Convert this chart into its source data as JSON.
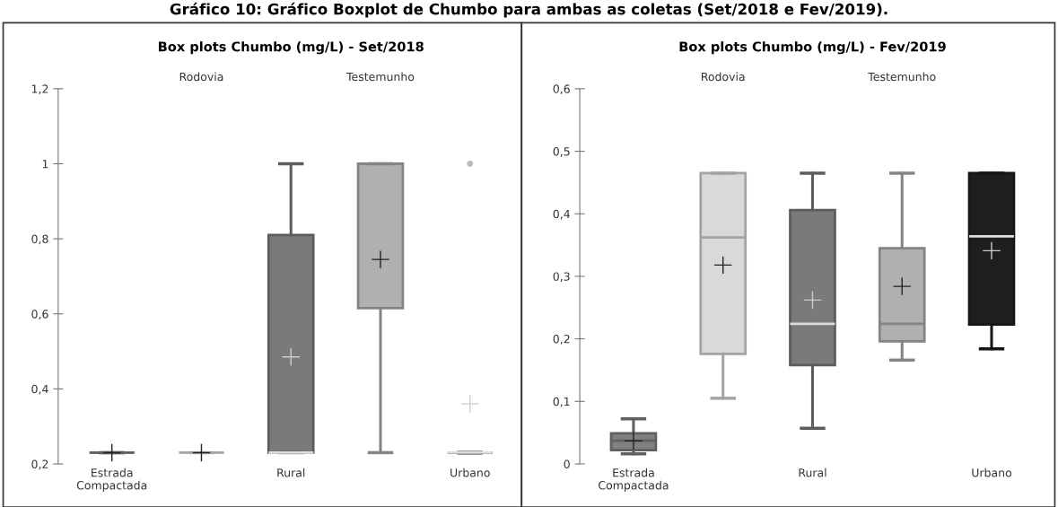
{
  "chart_data": [
    {
      "type": "box",
      "title": "Box plots Chumbo (mg/L) - Set/2018",
      "annotations": [
        "Gráfico 10: Gráfico Boxplot de Chumbo para ambas as coletas (Set/2018 e Fev/2019)."
      ],
      "categories": [
        "Estrada\nCompactada",
        "Rodovia",
        "Rural",
        "Testemunho",
        "Urbano"
      ],
      "colors": [
        "#808080",
        "#d9d9d9",
        "#7a7a7a",
        "#b0b0b0",
        "#1e1e1e"
      ],
      "boxes": [
        {
          "low": 0.23,
          "q1": 0.23,
          "median": 0.23,
          "q3": 0.23,
          "high": 0.23,
          "mean": 0.23
        },
        {
          "low": 0.23,
          "q1": 0.23,
          "median": 0.23,
          "q3": 0.23,
          "high": 0.23,
          "mean": 0.23
        },
        {
          "low": 0.23,
          "q1": 0.23,
          "median": 0.23,
          "q3": 0.81,
          "high": 1.0,
          "mean": 0.485
        },
        {
          "low": 0.23,
          "q1": 0.615,
          "median": 1.0,
          "q3": 1.0,
          "high": 1.0,
          "mean": 0.745
        },
        {
          "low": 0.23,
          "q1": 0.23,
          "median": 0.23,
          "q3": 0.23,
          "high": 0.23,
          "mean": 0.36,
          "outliers": [
            1.0
          ]
        }
      ],
      "ylim": [
        0.2,
        1.2
      ],
      "yticks": [
        {
          "value": 0.2,
          "label": "0,2"
        },
        {
          "value": 0.4,
          "label": "0,4"
        },
        {
          "value": 0.6,
          "label": "0,6"
        },
        {
          "value": 0.8,
          "label": "0,8"
        },
        {
          "value": 1,
          "label": "1"
        },
        {
          "value": 1.2,
          "label": "1,2"
        }
      ]
    },
    {
      "type": "box",
      "title": "Box plots Chumbo (mg/L) - Fev/2019",
      "categories": [
        "Estrada\nCompactada",
        "Rodovia",
        "Rural",
        "Testemunho",
        "Urbano"
      ],
      "colors": [
        "#808080",
        "#d9d9d9",
        "#7a7a7a",
        "#b0b0b0",
        "#1e1e1e"
      ],
      "boxes": [
        {
          "low": 0.016,
          "q1": 0.022,
          "median": 0.037,
          "q3": 0.049,
          "high": 0.072,
          "mean": 0.037
        },
        {
          "low": 0.105,
          "q1": 0.176,
          "median": 0.362,
          "q3": 0.465,
          "high": 0.465,
          "mean": 0.318
        },
        {
          "low": 0.057,
          "q1": 0.158,
          "median": 0.224,
          "q3": 0.406,
          "high": 0.465,
          "mean": 0.262
        },
        {
          "low": 0.166,
          "q1": 0.196,
          "median": 0.224,
          "q3": 0.345,
          "high": 0.465,
          "mean": 0.284
        },
        {
          "low": 0.184,
          "q1": 0.223,
          "median": 0.364,
          "q3": 0.465,
          "high": 0.465,
          "mean": 0.341
        }
      ],
      "ylim": [
        0,
        0.6
      ],
      "yticks": [
        {
          "value": 0,
          "label": "0"
        },
        {
          "value": 0.1,
          "label": "0,1"
        },
        {
          "value": 0.2,
          "label": "0,2"
        },
        {
          "value": 0.3,
          "label": "0,3"
        },
        {
          "value": 0.4,
          "label": "0,4"
        },
        {
          "value": 0.5,
          "label": "0,5"
        },
        {
          "value": 0.6,
          "label": "0,6"
        }
      ]
    }
  ]
}
